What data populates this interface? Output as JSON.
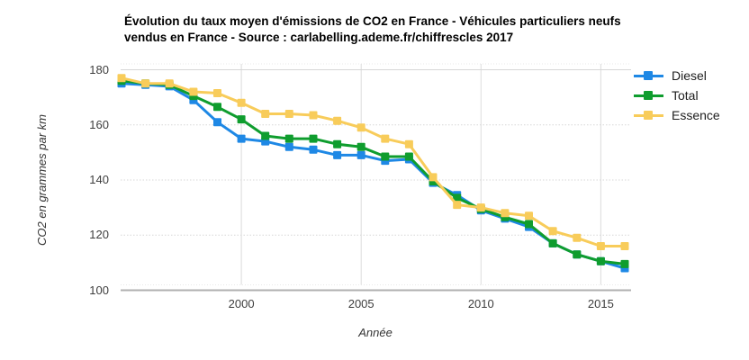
{
  "title": "Évolution du taux moyen d'émissions de CO2 en France - Véhicules particuliers neufs vendus en France - Source : carlabelling.ademe.fr/chiffrescles 2017",
  "chart_data": {
    "type": "line",
    "x": [
      1995,
      1996,
      1997,
      1998,
      1999,
      2000,
      2001,
      2002,
      2003,
      2004,
      2005,
      2006,
      2007,
      2008,
      2009,
      2010,
      2011,
      2012,
      2013,
      2014,
      2015,
      2016
    ],
    "series": [
      {
        "name": "Diesel",
        "color": "#1E88E5",
        "values": [
          175,
          174.5,
          174,
          169,
          161,
          155,
          154,
          152,
          151,
          149,
          149,
          147,
          147.5,
          139,
          134.5,
          129,
          126,
          123,
          117,
          113,
          110.5,
          108
        ]
      },
      {
        "name": "Total",
        "color": "#0F9D2E",
        "values": [
          176,
          175,
          174.5,
          170.5,
          166.5,
          162,
          156,
          155,
          155,
          153,
          152,
          148.5,
          148.5,
          139.5,
          133.5,
          129.5,
          126.5,
          124,
          117,
          113,
          110.5,
          109.5
        ]
      },
      {
        "name": "Essence",
        "color": "#F8CC5A",
        "values": [
          177,
          175,
          175,
          172,
          171.5,
          168,
          164,
          164,
          163.5,
          161.5,
          159,
          155,
          153,
          141,
          131,
          130,
          128,
          127,
          121.5,
          119,
          116,
          116
        ]
      }
    ],
    "xlabel": "Année",
    "ylabel": "CO2 en grammes par km",
    "yticks": [
      100,
      120,
      140,
      160,
      180
    ],
    "xticks": [
      2000,
      2005,
      2010,
      2015
    ],
    "ylim": [
      100,
      182
    ],
    "xlim": [
      1995,
      2016
    ],
    "grid": true,
    "legend_position": "top-right",
    "axis_colors": {
      "gridline": "#d7d7d7",
      "baseline": "#b0b0b0",
      "tick_text": "#3d3d3d"
    }
  }
}
